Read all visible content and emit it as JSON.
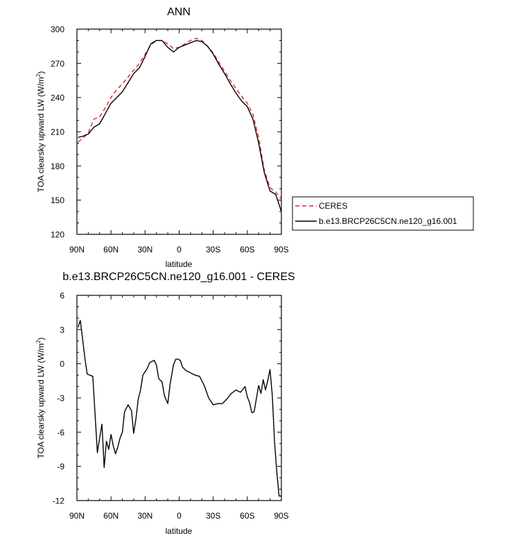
{
  "chart_data": [
    {
      "type": "line",
      "title": "ANN",
      "xlabel": "latitude",
      "ylabel": "TOA clearsky upward LW (W/m",
      "ylabel_sup": "2",
      "ylabel_close": ")",
      "xlim": [
        90,
        -90
      ],
      "ylim": [
        120,
        300
      ],
      "xticks": [
        90,
        60,
        30,
        0,
        -30,
        -60,
        -90
      ],
      "xtick_labels": [
        "90N",
        "60N",
        "30N",
        "0",
        "30S",
        "60S",
        "90S"
      ],
      "yticks": [
        120,
        150,
        180,
        210,
        240,
        270,
        300
      ],
      "ytick_labels": [
        "120",
        "150",
        "180",
        "210",
        "240",
        "270",
        "300"
      ],
      "legend": {
        "placement": "right",
        "entries": [
          "CERES",
          "b.e13.BRCP26C5CN.ne120_g16.001"
        ]
      },
      "series": [
        {
          "name": "CERES",
          "color": "#e8202a",
          "dash": "dashed",
          "x": [
            89,
            85,
            80,
            75,
            70,
            65,
            60,
            55,
            50,
            45,
            40,
            35,
            30,
            25,
            20,
            15,
            10,
            5,
            0,
            -5,
            -10,
            -15,
            -20,
            -25,
            -30,
            -35,
            -40,
            -45,
            -50,
            -55,
            -60,
            -65,
            -70,
            -75,
            -80,
            -85,
            -90
          ],
          "y": [
            201,
            204,
            209,
            221,
            223,
            231,
            240,
            247,
            252,
            258,
            264,
            270,
            278,
            286,
            290,
            290,
            287,
            283,
            284,
            287,
            290,
            292,
            290,
            285,
            279,
            271,
            263,
            255,
            248,
            241,
            235,
            225,
            205,
            176,
            161,
            157,
            151
          ]
        },
        {
          "name": "b.e13.BRCP26C5CN.ne120_g16.001",
          "color": "#000000",
          "dash": "solid",
          "x": [
            89,
            85,
            80,
            75,
            70,
            65,
            60,
            55,
            50,
            45,
            40,
            35,
            30,
            25,
            20,
            15,
            10,
            5,
            0,
            -5,
            -10,
            -15,
            -20,
            -25,
            -30,
            -35,
            -40,
            -45,
            -50,
            -55,
            -60,
            -65,
            -70,
            -75,
            -80,
            -85,
            -90
          ],
          "y": [
            205,
            206,
            208,
            214,
            217,
            226,
            235,
            240,
            245,
            253,
            261,
            266,
            276,
            287,
            290,
            290,
            284,
            280,
            284,
            286,
            288,
            290,
            289,
            285,
            278,
            269,
            261,
            252,
            244,
            237,
            232,
            221,
            200,
            174,
            158,
            155,
            140
          ]
        }
      ]
    },
    {
      "type": "line",
      "title": "b.e13.BRCP26C5CN.ne120_g16.001 - CERES",
      "xlabel": "latitude",
      "ylabel": "TOA clearsky upward LW (W/m",
      "ylabel_sup": "2",
      "ylabel_close": ")",
      "xlim": [
        90,
        -90
      ],
      "ylim": [
        -12,
        6
      ],
      "xticks": [
        90,
        60,
        30,
        0,
        -30,
        -60,
        -90
      ],
      "xtick_labels": [
        "90N",
        "60N",
        "30N",
        "0",
        "30S",
        "60S",
        "90S"
      ],
      "yticks": [
        -12,
        -9,
        -6,
        -3,
        0,
        3,
        6
      ],
      "ytick_labels": [
        "-12",
        "-9",
        "-6",
        "-3",
        "0",
        "3",
        "6"
      ],
      "series": [
        {
          "color": "#000000",
          "dash": "solid",
          "x": [
            89,
            87,
            83,
            81,
            76,
            72,
            70,
            68,
            66,
            64,
            62,
            60,
            58,
            56,
            54,
            52,
            50,
            48,
            45,
            42,
            40,
            38,
            36,
            34,
            32,
            28,
            26,
            22,
            20,
            18,
            15,
            13,
            10,
            8,
            5,
            3,
            1,
            -1,
            -3,
            -6,
            -10,
            -14,
            -18,
            -22,
            -26,
            -30,
            -34,
            -38,
            -42,
            -46,
            -50,
            -54,
            -58,
            -60,
            -62,
            -64,
            -66,
            -70,
            -72,
            -74,
            -76,
            -78,
            -80,
            -82,
            -84,
            -86,
            -88,
            -90
          ],
          "y": [
            3.2,
            3.8,
            0.5,
            -0.9,
            -1.1,
            -7.8,
            -6.5,
            -5.3,
            -9.1,
            -6.8,
            -7.5,
            -6.2,
            -7.2,
            -7.9,
            -7.3,
            -6.5,
            -6.0,
            -4.2,
            -3.6,
            -4.1,
            -6.1,
            -4.8,
            -3.1,
            -2.3,
            -1.0,
            -0.4,
            0.1,
            0.3,
            -0.1,
            -1.3,
            -1.6,
            -2.8,
            -3.5,
            -1.8,
            -0.1,
            0.4,
            0.4,
            0.3,
            -0.3,
            -0.6,
            -0.8,
            -1.0,
            -1.1,
            -1.9,
            -3.0,
            -3.6,
            -3.5,
            -3.5,
            -3.1,
            -2.6,
            -2.3,
            -2.5,
            -2.0,
            -2.9,
            -3.4,
            -4.3,
            -4.2,
            -1.9,
            -2.6,
            -1.4,
            -2.3,
            -1.5,
            -0.5,
            -2.8,
            -6.9,
            -9.5,
            -11.6,
            -11.6
          ]
        }
      ]
    }
  ]
}
